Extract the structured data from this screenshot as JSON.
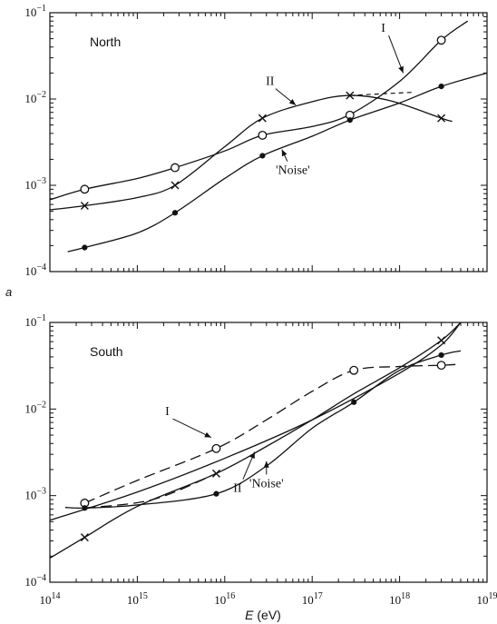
{
  "chart_data": [
    {
      "type": "line",
      "panel_letter": "a",
      "title": "North",
      "xlabel": "",
      "ylabel": "",
      "x_scale": "log",
      "y_scale": "log",
      "xlim": [
        100000000000000.0,
        1e+19
      ],
      "ylim": [
        0.0001,
        0.1
      ],
      "grid": false,
      "y_tick_labels": [
        {
          "value": 0.1,
          "base": "10",
          "exp": "−1"
        },
        {
          "value": 0.01,
          "base": "10",
          "exp": "−2"
        },
        {
          "value": 0.001,
          "base": "10",
          "exp": "−3"
        },
        {
          "value": 0.0001,
          "base": "10",
          "exp": "−4"
        }
      ],
      "series": [
        {
          "name": "I",
          "marker": "circle-open",
          "line": "solid",
          "points": [
            {
              "x": 250000000000000.0,
              "y": 0.0009
            },
            {
              "x": 2700000000000000.0,
              "y": 0.0016
            },
            {
              "x": 2.7e+16,
              "y": 0.0038
            },
            {
              "x": 2.7e+17,
              "y": 0.0065
            },
            {
              "x": 3e+18,
              "y": 0.048
            }
          ],
          "curve": [
            {
              "x": 100000000000000.0,
              "y": 0.00068
            },
            {
              "x": 250000000000000.0,
              "y": 0.0009
            },
            {
              "x": 1000000000000000.0,
              "y": 0.0012
            },
            {
              "x": 2700000000000000.0,
              "y": 0.0016
            },
            {
              "x": 1e+16,
              "y": 0.0025
            },
            {
              "x": 2.7e+16,
              "y": 0.0038
            },
            {
              "x": 1e+17,
              "y": 0.0048
            },
            {
              "x": 2.7e+17,
              "y": 0.0066
            },
            {
              "x": 1e+18,
              "y": 0.016
            },
            {
              "x": 3e+18,
              "y": 0.048
            },
            {
              "x": 6e+18,
              "y": 0.08
            }
          ]
        },
        {
          "name": "II",
          "marker": "cross",
          "line": "solid",
          "points": [
            {
              "x": 250000000000000.0,
              "y": 0.00058
            },
            {
              "x": 2700000000000000.0,
              "y": 0.001
            },
            {
              "x": 2.7e+16,
              "y": 0.006
            },
            {
              "x": 2.7e+17,
              "y": 0.011
            },
            {
              "x": 3e+18,
              "y": 0.006
            }
          ],
          "curve": [
            {
              "x": 100000000000000.0,
              "y": 0.00052
            },
            {
              "x": 250000000000000.0,
              "y": 0.00058
            },
            {
              "x": 1000000000000000.0,
              "y": 0.00072
            },
            {
              "x": 2700000000000000.0,
              "y": 0.001
            },
            {
              "x": 1e+16,
              "y": 0.0028
            },
            {
              "x": 2.7e+16,
              "y": 0.006
            },
            {
              "x": 1e+17,
              "y": 0.0093
            },
            {
              "x": 2.7e+17,
              "y": 0.011
            },
            {
              "x": 8e+17,
              "y": 0.0095
            },
            {
              "x": 3e+18,
              "y": 0.006
            },
            {
              "x": 4e+18,
              "y": 0.0055
            }
          ],
          "dashed_extension": [
            {
              "x": 2.7e+17,
              "y": 0.011
            },
            {
              "x": 1.5e+18,
              "y": 0.012
            }
          ]
        },
        {
          "name": "'Noise'",
          "marker": "circle-filled",
          "line": "solid",
          "points": [
            {
              "x": 250000000000000.0,
              "y": 0.00019
            },
            {
              "x": 2700000000000000.0,
              "y": 0.00048
            },
            {
              "x": 2.7e+16,
              "y": 0.0022
            },
            {
              "x": 2.7e+17,
              "y": 0.0057
            },
            {
              "x": 3e+18,
              "y": 0.014
            }
          ],
          "curve": [
            {
              "x": 160000000000000.0,
              "y": 0.00017
            },
            {
              "x": 250000000000000.0,
              "y": 0.00019
            },
            {
              "x": 1000000000000000.0,
              "y": 0.00028
            },
            {
              "x": 2700000000000000.0,
              "y": 0.00048
            },
            {
              "x": 1e+16,
              "y": 0.0012
            },
            {
              "x": 2.7e+16,
              "y": 0.0022
            },
            {
              "x": 1e+17,
              "y": 0.0037
            },
            {
              "x": 2.7e+17,
              "y": 0.0057
            },
            {
              "x": 1e+18,
              "y": 0.009
            },
            {
              "x": 3e+18,
              "y": 0.014
            },
            {
              "x": 1e+19,
              "y": 0.02
            }
          ]
        }
      ],
      "annotations": [
        {
          "text": "I",
          "pos": {
            "x": 6.5e+17,
            "y": 0.06
          },
          "arrow_to": {
            "x": 1.1e+18,
            "y": 0.02
          }
        },
        {
          "text": "II",
          "pos": {
            "x": 3.3e+16,
            "y": 0.0145
          },
          "arrow_to": {
            "x": 6.5e+16,
            "y": 0.0085
          }
        },
        {
          "text": "'Noise'",
          "pos": {
            "x": 6e+16,
            "y": 0.00135
          },
          "arrow_to": {
            "x": 4.5e+16,
            "y": 0.0026
          }
        }
      ]
    },
    {
      "type": "line",
      "title": "South",
      "xlabel": "E (eV)",
      "xlabel_var": "E",
      "xlabel_unit": " (eV)",
      "ylabel": "",
      "x_scale": "log",
      "y_scale": "log",
      "xlim": [
        100000000000000.0,
        1e+19
      ],
      "ylim": [
        0.0001,
        0.1
      ],
      "grid": false,
      "x_tick_labels": [
        {
          "value": 100000000000000.0,
          "base": "10",
          "exp": "14"
        },
        {
          "value": 1000000000000000.0,
          "base": "10",
          "exp": "15"
        },
        {
          "value": 1e+16,
          "base": "10",
          "exp": "16"
        },
        {
          "value": 1e+17,
          "base": "10",
          "exp": "17"
        },
        {
          "value": 1e+18,
          "base": "10",
          "exp": "18"
        },
        {
          "value": 1e+19,
          "base": "10",
          "exp": "19"
        }
      ],
      "y_tick_labels": [
        {
          "value": 0.1,
          "base": "10",
          "exp": "−1"
        },
        {
          "value": 0.01,
          "base": "10",
          "exp": "−2"
        },
        {
          "value": 0.001,
          "base": "10",
          "exp": "−3"
        },
        {
          "value": 0.0001,
          "base": "10",
          "exp": "−4"
        }
      ],
      "series": [
        {
          "name": "I",
          "marker": "circle-open",
          "line": "dashed",
          "points": [
            {
              "x": 250000000000000.0,
              "y": 0.00082
            },
            {
              "x": 8000000000000000.0,
              "y": 0.0035
            },
            {
              "x": 3e+17,
              "y": 0.028
            },
            {
              "x": 3e+18,
              "y": 0.032
            }
          ],
          "curve": [
            {
              "x": 250000000000000.0,
              "y": 0.00082
            },
            {
              "x": 1000000000000000.0,
              "y": 0.0015
            },
            {
              "x": 8000000000000000.0,
              "y": 0.0035
            },
            {
              "x": 3e+16,
              "y": 0.0075
            },
            {
              "x": 1e+17,
              "y": 0.016
            },
            {
              "x": 3e+17,
              "y": 0.028
            },
            {
              "x": 1e+18,
              "y": 0.031
            },
            {
              "x": 3e+18,
              "y": 0.032
            },
            {
              "x": 5e+18,
              "y": 0.033
            }
          ]
        },
        {
          "name": "II",
          "marker": "cross",
          "line": "solid",
          "points": [
            {
              "x": 250000000000000.0,
              "y": 0.00033
            },
            {
              "x": 8000000000000000.0,
              "y": 0.0018
            },
            {
              "x": 3e+18,
              "y": 0.062
            }
          ],
          "curve": [
            {
              "x": 100000000000000.0,
              "y": 0.00019
            },
            {
              "x": 250000000000000.0,
              "y": 0.00033
            },
            {
              "x": 1000000000000000.0,
              "y": 0.00075
            },
            {
              "x": 8000000000000000.0,
              "y": 0.0018
            },
            {
              "x": 3e+16,
              "y": 0.0037
            },
            {
              "x": 1e+17,
              "y": 0.0075
            },
            {
              "x": 3e+17,
              "y": 0.015
            },
            {
              "x": 1e+18,
              "y": 0.03
            },
            {
              "x": 3e+18,
              "y": 0.062
            },
            {
              "x": 5e+18,
              "y": 0.1
            }
          ]
        },
        {
          "name": "'Noise'",
          "marker": "circle-filled",
          "line": "solid",
          "points": [
            {
              "x": 250000000000000.0,
              "y": 0.00072
            },
            {
              "x": 8000000000000000.0,
              "y": 0.00105
            },
            {
              "x": 3e+17,
              "y": 0.012
            },
            {
              "x": 3e+18,
              "y": 0.042
            }
          ],
          "curve": [
            {
              "x": 150000000000000.0,
              "y": 0.00073
            },
            {
              "x": 250000000000000.0,
              "y": 0.00072
            },
            {
              "x": 1000000000000000.0,
              "y": 0.00078
            },
            {
              "x": 8000000000000000.0,
              "y": 0.00105
            },
            {
              "x": 3e+16,
              "y": 0.0022
            },
            {
              "x": 1e+17,
              "y": 0.006
            },
            {
              "x": 3e+17,
              "y": 0.012
            },
            {
              "x": 1e+18,
              "y": 0.028
            },
            {
              "x": 3e+18,
              "y": 0.042
            },
            {
              "x": 5e+18,
              "y": 0.047
            }
          ]
        },
        {
          "name": "",
          "marker": "none",
          "line": "solid",
          "points": [],
          "curve": [
            {
              "x": 100000000000000.0,
              "y": 0.00052
            },
            {
              "x": 1000000000000000.0,
              "y": 0.0011
            },
            {
              "x": 1e+16,
              "y": 0.0027
            },
            {
              "x": 1e+17,
              "y": 0.0075
            },
            {
              "x": 1e+18,
              "y": 0.026
            },
            {
              "x": 3e+18,
              "y": 0.055
            },
            {
              "x": 5e+18,
              "y": 0.1
            }
          ]
        },
        {
          "name": "",
          "marker": "none",
          "line": "dashed",
          "points": [],
          "curve": [
            {
              "x": 250000000000000.0,
              "y": 0.00072
            },
            {
              "x": 1500000000000000.0,
              "y": 0.0009
            },
            {
              "x": 8000000000000000.0,
              "y": 0.0018
            }
          ]
        }
      ],
      "annotations": [
        {
          "text": "I",
          "pos": {
            "x": 2200000000000000.0,
            "y": 0.0085
          },
          "arrow_to": {
            "x": 7000000000000000.0,
            "y": 0.0047
          }
        },
        {
          "text": "II",
          "pos": {
            "x": 1.4e+16,
            "y": 0.0011
          },
          "arrow_to": {
            "x": 2.2e+16,
            "y": 0.0032
          }
        },
        {
          "text": "'Noise'",
          "pos": {
            "x": 3e+16,
            "y": 0.00125
          },
          "arrow_to": {
            "x": 3e+16,
            "y": 0.0025
          }
        }
      ]
    }
  ]
}
